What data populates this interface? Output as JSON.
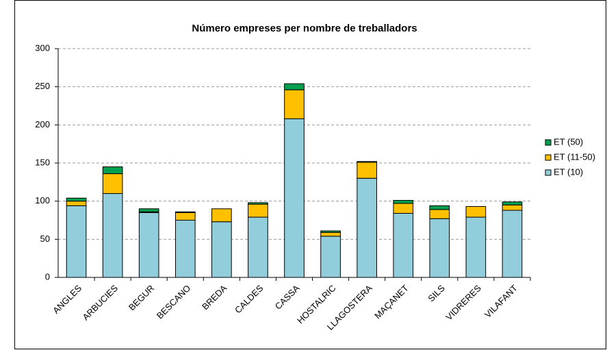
{
  "chart_data": {
    "type": "stacked-bar",
    "title": "Número empreses per nombre de treballadors",
    "categories": [
      "ANGLES",
      "ARBUCIES",
      "BEGUR",
      "BESCANO",
      "BREDA",
      "CALDES",
      "CASSA",
      "HOSTALRIC",
      "LLAGOSTERA",
      "MAÇANET",
      "SILS",
      "VIDRERES",
      "VILAFANT"
    ],
    "series": [
      {
        "name": "ET (10)",
        "color": "#92cddc",
        "values": [
          94,
          110,
          85,
          75,
          73,
          79,
          208,
          54,
          130,
          84,
          77,
          79,
          88
        ]
      },
      {
        "name": "ET (11-50)",
        "color": "#ffc000",
        "values": [
          6,
          26,
          1,
          10,
          17,
          17,
          38,
          5,
          21,
          13,
          12,
          14,
          7
        ]
      },
      {
        "name": "ET (50)",
        "color": "#00a050",
        "values": [
          4,
          9,
          4,
          1,
          0,
          2,
          8,
          2,
          1,
          4,
          5,
          0,
          4
        ]
      }
    ],
    "ylim": [
      0,
      300
    ],
    "yticks": [
      0,
      50,
      100,
      150,
      200,
      250,
      300
    ],
    "grid": true,
    "legend": "right"
  }
}
